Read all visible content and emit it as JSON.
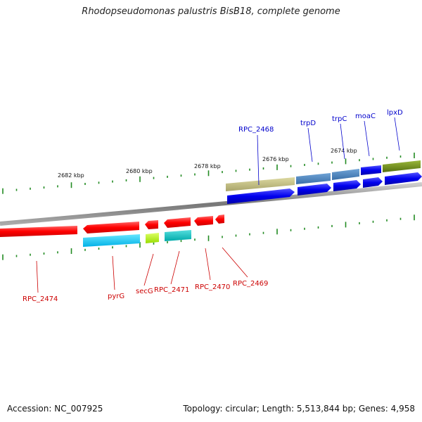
{
  "title": "Rhodopseudomonas palustris BisB18, complete genome",
  "footer": {
    "accession": "Accession: NC_007925",
    "topology": "Topology: circular; Length: 5,513,844 bp; Genes: 4,958"
  },
  "scale_labels": [
    "2682 kbp",
    "2680 kbp",
    "2678 kbp",
    "2676 kbp",
    "2674 kbp"
  ],
  "genes_upper": [
    "RPC_2468",
    "trpD",
    "trpC",
    "moaC",
    "lpxD"
  ],
  "genes_lower": [
    "RPC_2474",
    "pyrG",
    "secG",
    "RPC_2471",
    "RPC_2470",
    "RPC_2469"
  ],
  "colors": {
    "reverse_strand": "#ff0000",
    "forward_strand": "#0000ff",
    "backbone": "#888888",
    "tick": "#228b22"
  }
}
